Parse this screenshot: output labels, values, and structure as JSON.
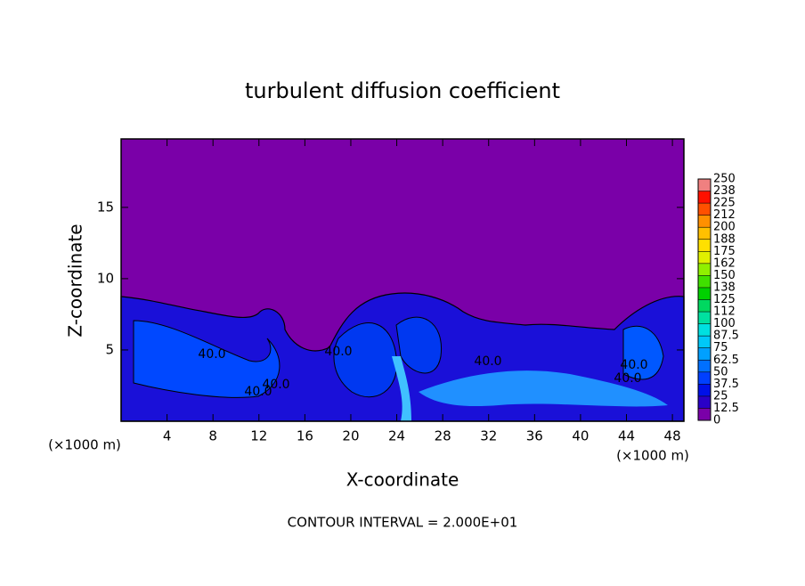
{
  "chart_data": {
    "type": "contour",
    "title": "turbulent diffusion coefficient",
    "x_label": "X-coordinate",
    "y_label": "Z-coordinate",
    "x_unit": "(×1000 m)",
    "xlim": [
      0,
      49
    ],
    "xticks": [
      4,
      8,
      12,
      16,
      20,
      24,
      28,
      32,
      36,
      40,
      44,
      48
    ],
    "ylim": [
      0,
      19.8
    ],
    "yticks": [
      5,
      10,
      15
    ],
    "colorbar": {
      "levels": [
        0,
        12.5,
        25,
        37.5,
        50,
        62.5,
        75,
        87.5,
        100,
        112,
        125,
        138,
        150,
        162,
        175,
        188,
        200,
        212,
        225,
        238,
        250
      ],
      "colors": [
        "#7a00a8",
        "#2a00c8",
        "#0010e8",
        "#0040ff",
        "#0070ff",
        "#00a0ff",
        "#00c8f8",
        "#00e0e0",
        "#00e0a0",
        "#00d860",
        "#00d000",
        "#40e000",
        "#90f000",
        "#e0f000",
        "#ffe000",
        "#ffc000",
        "#ff9000",
        "#ff5000",
        "#ff1000",
        "#f08080"
      ]
    },
    "contour_labels": [
      "40.0",
      "40.0",
      "40.0",
      "40.0",
      "40.0",
      "40.0",
      "40.0"
    ],
    "footer": "CONTOUR INTERVAL = 2.000E+01"
  }
}
